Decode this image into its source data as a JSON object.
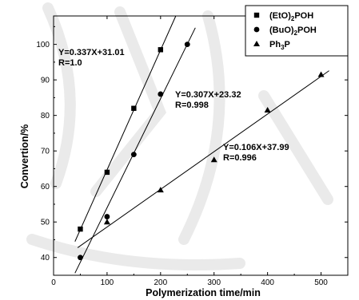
{
  "chart_data": {
    "type": "scatter",
    "xlabel": "Polymerization time/min",
    "ylabel": "Convertion/%",
    "xlim": [
      0,
      550
    ],
    "ylim": [
      35,
      108
    ],
    "xticks": [
      0,
      100,
      200,
      300,
      400,
      500
    ],
    "yticks": [
      40,
      50,
      60,
      70,
      80,
      90,
      100
    ],
    "grid": false,
    "legend_position": "top-right",
    "series": [
      {
        "name": "(EtO)2POH",
        "name_main": "(EtO)",
        "name_sub": "2",
        "name_end": "POH",
        "marker": "square",
        "x": [
          50,
          100,
          150,
          200
        ],
        "y": [
          48,
          64,
          82,
          98.5
        ],
        "fit": {
          "slope": 0.337,
          "intercept": 31.01,
          "x_range": [
            40,
            265
          ]
        },
        "equation": "Y=0.337X+31.01",
        "r_label": "R=1.0"
      },
      {
        "name": "(BuO)2POH",
        "name_main": "(BuO)",
        "name_sub": "2",
        "name_end": "POH",
        "marker": "circle",
        "x": [
          50,
          100,
          150,
          200,
          250
        ],
        "y": [
          40,
          51.5,
          69,
          86,
          100
        ],
        "fit": {
          "slope": 0.307,
          "intercept": 23.32,
          "x_range": [
            40,
            265
          ]
        },
        "equation": "Y=0.307X+23.32",
        "r_label": "R=0.998"
      },
      {
        "name": "Ph3P",
        "name_main": "Ph",
        "name_sub": "3",
        "name_end": "P",
        "marker": "triangle",
        "x": [
          100,
          200,
          300,
          400,
          500
        ],
        "y": [
          50,
          59,
          67.5,
          81.5,
          91.5
        ],
        "fit": {
          "slope": 0.106,
          "intercept": 37.99,
          "x_range": [
            45,
            515
          ]
        },
        "equation": "Y=0.106X+37.99",
        "r_label": "R=0.996"
      }
    ]
  }
}
